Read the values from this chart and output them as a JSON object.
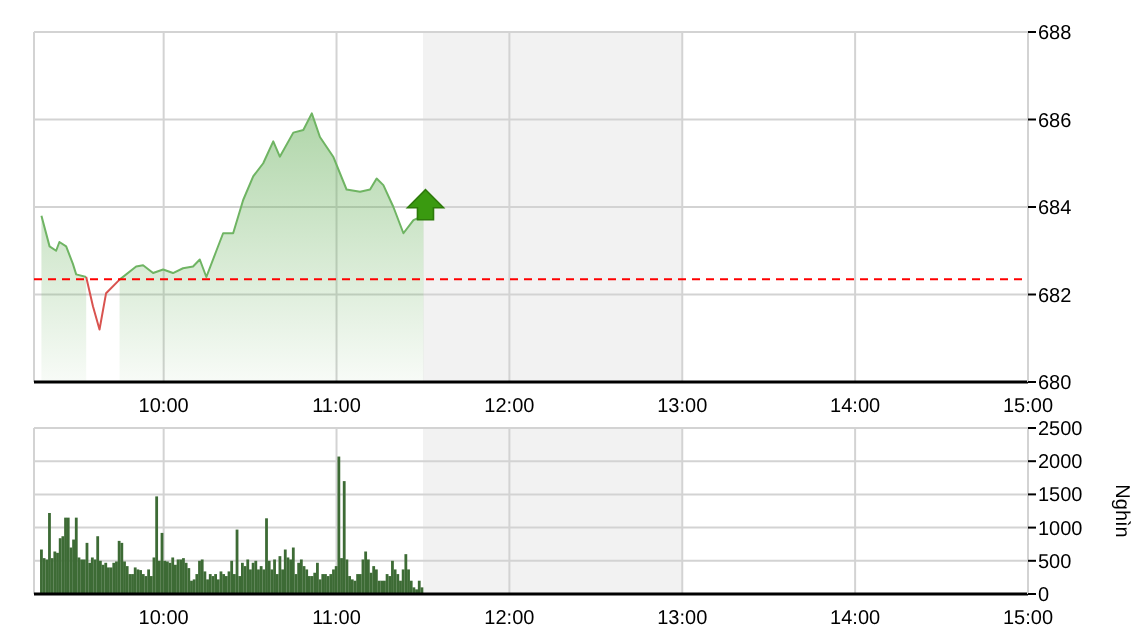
{
  "chart_data": [
    {
      "type": "area",
      "xlim": [
        9.25,
        15
      ],
      "xticks": [
        {
          "value": 10,
          "label": "10:00"
        },
        {
          "value": 11,
          "label": "11:00"
        },
        {
          "value": 12,
          "label": "12:00"
        },
        {
          "value": 13,
          "label": "13:00"
        },
        {
          "value": 14,
          "label": "14:00"
        },
        {
          "value": 15,
          "label": "15:00"
        }
      ],
      "ylim": [
        680,
        688
      ],
      "yticks": [
        680,
        682,
        684,
        686,
        688
      ],
      "grid": true,
      "ref_lines": [
        {
          "axis": "y",
          "value": 682.35,
          "color": "#ff0000",
          "line_style": "dashed"
        }
      ],
      "bands": [
        {
          "axis": "x",
          "from": 11.5,
          "to": 13,
          "color": "#f2f2f2"
        }
      ],
      "series": [
        {
          "color": "#6fb463",
          "x": [
            9.293,
            9.34,
            9.378,
            9.397,
            9.436,
            9.475,
            9.494,
            9.552,
            9.591,
            9.629,
            9.667,
            9.745,
            9.841,
            9.881,
            9.939,
            9.997,
            10.054,
            10.112,
            10.17,
            10.209,
            10.247,
            10.305,
            10.344,
            10.402,
            10.46,
            10.518,
            10.576,
            10.634,
            10.672,
            10.75,
            10.808,
            10.857,
            10.904,
            10.981,
            11.058,
            11.136,
            11.194,
            11.232,
            11.271,
            11.329,
            11.387,
            11.445,
            11.503
          ],
          "values": [
            683.8,
            683.1,
            683.0,
            683.2,
            683.1,
            682.7,
            682.46,
            682.4,
            null,
            null,
            null,
            682.34,
            682.64,
            682.67,
            682.49,
            682.57,
            682.49,
            682.6,
            682.64,
            682.8,
            682.4,
            683.0,
            683.4,
            683.4,
            684.16,
            684.7,
            685.0,
            685.5,
            685.15,
            685.7,
            685.76,
            686.14,
            685.6,
            685.15,
            684.4,
            684.35,
            684.4,
            684.65,
            684.5,
            684.0,
            683.4,
            683.7,
            683.8
          ]
        },
        {
          "type": "line",
          "color": "#d9534f",
          "x": [
            9.552,
            9.591,
            9.629,
            9.667,
            9.745
          ],
          "values": [
            682.4,
            681.73,
            681.2,
            682.03,
            682.34
          ]
        }
      ]
    },
    {
      "type": "bar",
      "ylabel": "Nghìn",
      "color": "#3d6b35",
      "xlim": [
        9.25,
        15
      ],
      "xticks": [
        {
          "value": 10,
          "label": "10:00"
        },
        {
          "value": 11,
          "label": "11:00"
        },
        {
          "value": 12,
          "label": "12:00"
        },
        {
          "value": 13,
          "label": "13:00"
        },
        {
          "value": 14,
          "label": "14:00"
        },
        {
          "value": 15,
          "label": "15:00"
        }
      ],
      "ylim": [
        0,
        2500
      ],
      "yticks": [
        0,
        500,
        1000,
        1500,
        2000,
        2500
      ],
      "grid": true,
      "bands": [
        {
          "axis": "x",
          "from": 11.5,
          "to": 13,
          "color": "#f2f2f2"
        }
      ],
      "x": [
        9.293,
        9.3085,
        9.324,
        9.3395,
        9.355,
        9.3705,
        9.386,
        9.4015,
        9.417,
        9.4325,
        9.448,
        9.4635,
        9.479,
        9.4945,
        9.51,
        9.5255,
        9.541,
        9.5565,
        9.572,
        9.5875,
        9.603,
        9.6185,
        9.634,
        9.6495,
        9.665,
        9.6805,
        9.696,
        9.7115,
        9.727,
        9.7425,
        9.758,
        9.7735,
        9.789,
        9.8045,
        9.82,
        9.8355,
        9.851,
        9.8665,
        9.882,
        9.8975,
        9.913,
        9.9285,
        9.944,
        9.9595,
        9.975,
        9.9905,
        10.006,
        10.0215,
        10.037,
        10.0525,
        10.068,
        10.0835,
        10.099,
        10.1145,
        10.13,
        10.1455,
        10.161,
        10.1765,
        10.192,
        10.2075,
        10.223,
        10.2385,
        10.254,
        10.2695,
        10.285,
        10.3005,
        10.316,
        10.3315,
        10.347,
        10.3625,
        10.378,
        10.3935,
        10.409,
        10.4245,
        10.44,
        10.4555,
        10.471,
        10.4865,
        10.502,
        10.5175,
        10.533,
        10.5485,
        10.564,
        10.5795,
        10.595,
        10.6105,
        10.626,
        10.6415,
        10.657,
        10.6725,
        10.688,
        10.7035,
        10.719,
        10.7345,
        10.75,
        10.7655,
        10.781,
        10.7965,
        10.812,
        10.8275,
        10.843,
        10.8585,
        10.874,
        10.8895,
        10.905,
        10.9205,
        10.936,
        10.9515,
        10.967,
        10.9825,
        10.998,
        11.0135,
        11.029,
        11.0445,
        11.06,
        11.0755,
        11.091,
        11.1065,
        11.122,
        11.1375,
        11.153,
        11.1685,
        11.184,
        11.1995,
        11.215,
        11.2305,
        11.246,
        11.2615,
        11.277,
        11.2925,
        11.308,
        11.3235,
        11.339,
        11.3545,
        11.37,
        11.3855,
        11.401,
        11.4165,
        11.432,
        11.4475,
        11.463,
        11.4785,
        11.494
      ],
      "values": [
        670,
        540,
        520,
        1220,
        540,
        640,
        620,
        840,
        870,
        1150,
        1150,
        700,
        820,
        1150,
        550,
        520,
        520,
        770,
        470,
        550,
        520,
        870,
        500,
        440,
        470,
        400,
        400,
        470,
        490,
        800,
        770,
        490,
        420,
        300,
        300,
        400,
        370,
        360,
        300,
        270,
        370,
        270,
        550,
        1470,
        500,
        920,
        500,
        490,
        470,
        550,
        440,
        520,
        520,
        540,
        470,
        390,
        200,
        220,
        300,
        500,
        520,
        340,
        220,
        300,
        270,
        300,
        220,
        340,
        300,
        270,
        340,
        500,
        300,
        970,
        270,
        470,
        420,
        520,
        370,
        470,
        500,
        370,
        420,
        370,
        1140,
        500,
        370,
        520,
        300,
        570,
        370,
        670,
        550,
        520,
        700,
        300,
        470,
        520,
        420,
        370,
        270,
        270,
        320,
        470,
        220,
        300,
        300,
        270,
        300,
        370,
        420,
        2070,
        540,
        1700,
        520,
        270,
        220,
        200,
        300,
        300,
        520,
        640,
        520,
        320,
        420,
        370,
        200,
        200,
        200,
        300,
        270,
        500,
        370,
        300,
        200,
        370,
        600,
        370,
        200,
        100,
        70,
        200,
        100
      ]
    }
  ]
}
